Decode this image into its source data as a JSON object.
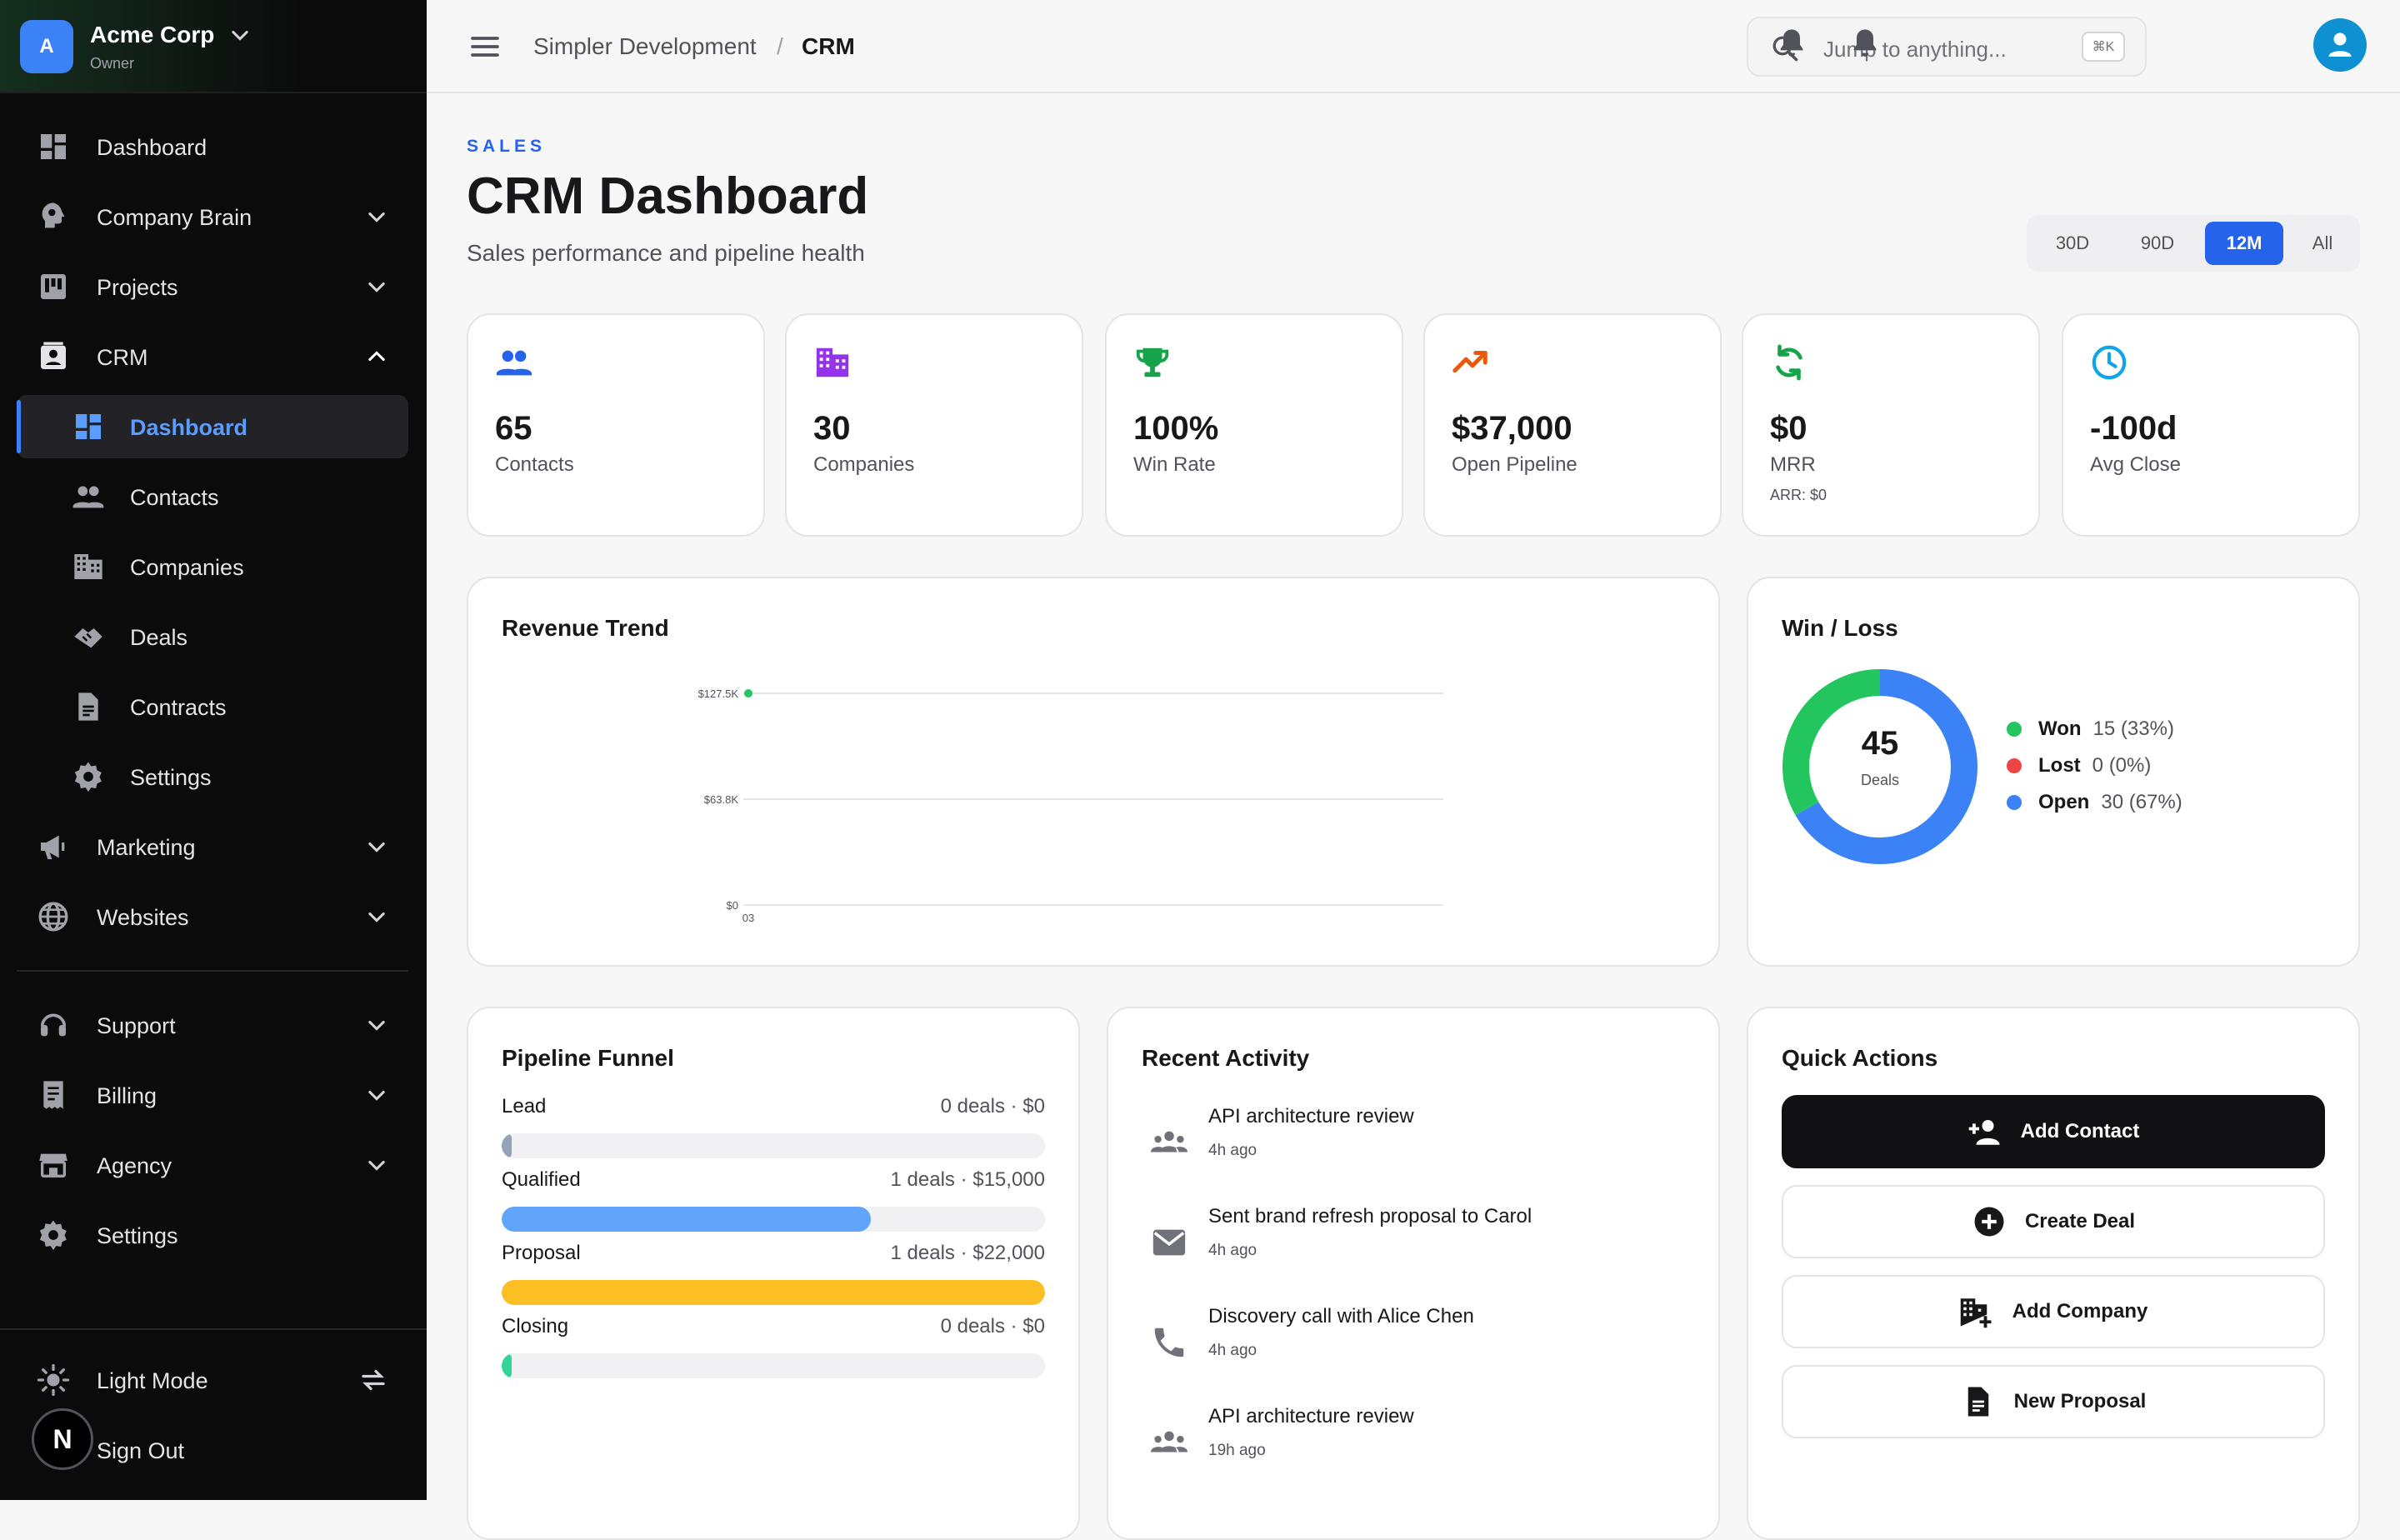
{
  "org": {
    "initial": "A",
    "name": "Acme Corp",
    "role": "Owner"
  },
  "sidebar": {
    "items": [
      {
        "label": "Dashboard"
      },
      {
        "label": "Company Brain"
      },
      {
        "label": "Projects"
      },
      {
        "label": "CRM"
      },
      {
        "label": "Marketing"
      },
      {
        "label": "Websites"
      },
      {
        "label": "Support"
      },
      {
        "label": "Billing"
      },
      {
        "label": "Agency"
      },
      {
        "label": "Settings"
      }
    ],
    "crm_sub": [
      {
        "label": "Dashboard"
      },
      {
        "label": "Contacts"
      },
      {
        "label": "Companies"
      },
      {
        "label": "Deals"
      },
      {
        "label": "Contracts"
      },
      {
        "label": "Settings"
      }
    ],
    "footer": {
      "light_mode": "Light Mode",
      "sign_out": "Sign Out",
      "badge": "N"
    }
  },
  "topbar": {
    "breadcrumb": [
      "Simpler Development",
      "CRM"
    ],
    "separator": "/",
    "search_placeholder": "Jump to anything...",
    "search_shortcut": "⌘K"
  },
  "page": {
    "eyebrow": "SALES",
    "title": "CRM Dashboard",
    "subtitle": "Sales performance and pipeline health",
    "ranges": [
      "30D",
      "90D",
      "12M",
      "All"
    ],
    "active_range": "12M"
  },
  "stats": [
    {
      "value": "65",
      "label": "Contacts",
      "icon": "people-icon",
      "color": "#2563eb"
    },
    {
      "value": "30",
      "label": "Companies",
      "icon": "building-icon",
      "color": "#9333ea"
    },
    {
      "value": "100%",
      "label": "Win Rate",
      "icon": "trophy-icon",
      "color": "#16a34a"
    },
    {
      "value": "$37,000",
      "label": "Open Pipeline",
      "icon": "trending-up-icon",
      "color": "#ea580c"
    },
    {
      "value": "$0",
      "label": "MRR",
      "sub": "ARR: $0",
      "icon": "refresh-icon",
      "color": "#16a34a"
    },
    {
      "value": "-100d",
      "label": "Avg Close",
      "icon": "clock-icon",
      "color": "#0ea5e9"
    }
  ],
  "revenue": {
    "title": "Revenue Trend",
    "chart_data": {
      "type": "line",
      "x": [
        "03"
      ],
      "series": [
        {
          "values": [
            127500
          ],
          "color": "#22c55e"
        }
      ],
      "y_tick_labels": [
        "$127.5K",
        "$63.8K",
        "$0"
      ],
      "ylim": [
        0,
        127500
      ],
      "grid": true
    }
  },
  "winloss": {
    "title": "Win / Loss",
    "total": "45",
    "total_label": "Deals",
    "chart_data": {
      "type": "pie",
      "categories": [
        "Won",
        "Lost",
        "Open"
      ],
      "values": [
        15,
        0,
        30
      ],
      "colors": [
        "#22c55e",
        "#ef4444",
        "#3b82f6"
      ]
    },
    "legend": [
      {
        "name": "Won",
        "value": "15 (33%)",
        "color": "#22c55e"
      },
      {
        "name": "Lost",
        "value": "0 (0%)",
        "color": "#ef4444"
      },
      {
        "name": "Open",
        "value": "30 (67%)",
        "color": "#3b82f6"
      }
    ]
  },
  "funnel": {
    "title": "Pipeline Funnel",
    "stages": [
      {
        "name": "Lead",
        "info": "0 deals · $0",
        "fraction": 0.0,
        "color": "#94a3b8"
      },
      {
        "name": "Qualified",
        "info": "1 deals · $15,000",
        "fraction": 0.68,
        "color": "#60a5fa"
      },
      {
        "name": "Proposal",
        "info": "1 deals · $22,000",
        "fraction": 1.0,
        "color": "#fbbf24"
      },
      {
        "name": "Closing",
        "info": "0 deals · $0",
        "fraction": 0.0,
        "color": "#34d399"
      }
    ]
  },
  "activity": {
    "title": "Recent Activity",
    "items": [
      {
        "text": "API architecture review",
        "time": "4h ago",
        "icon": "group-icon"
      },
      {
        "text": "Sent brand refresh proposal to Carol",
        "time": "4h ago",
        "icon": "mail-icon"
      },
      {
        "text": "Discovery call with Alice Chen",
        "time": "4h ago",
        "icon": "phone-icon"
      },
      {
        "text": "API architecture review",
        "time": "19h ago",
        "icon": "group-icon"
      }
    ]
  },
  "quick": {
    "title": "Quick Actions",
    "actions": [
      {
        "label": "Add Contact",
        "icon": "add-person-icon"
      },
      {
        "label": "Create Deal",
        "icon": "plus-circle-icon"
      },
      {
        "label": "Add Company",
        "icon": "add-building-icon"
      },
      {
        "label": "New Proposal",
        "icon": "document-icon"
      }
    ]
  }
}
